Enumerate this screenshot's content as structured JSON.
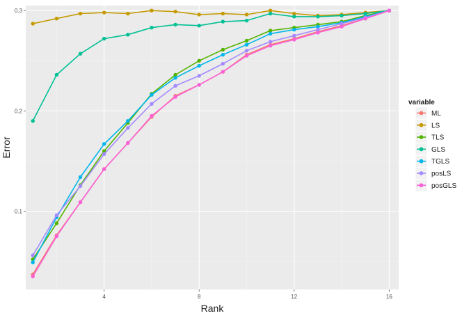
{
  "chart_data": {
    "type": "line",
    "xlabel": "Rank",
    "ylabel": "Error",
    "xlim": [
      0.7,
      16.4
    ],
    "ylim": [
      0.022,
      0.305
    ],
    "x_ticks": [
      4,
      8,
      12,
      16
    ],
    "x_tick_labels": [
      "4",
      "8",
      "12",
      "16"
    ],
    "y_ticks": [
      0.1,
      0.2,
      0.3
    ],
    "y_tick_labels": [
      "0.1",
      "0.2",
      "0.3"
    ],
    "x_minor_ticks": [
      2,
      6,
      10,
      14
    ],
    "y_minor_ticks": [
      0.05,
      0.15,
      0.25
    ],
    "grid": true,
    "background": "#ebebeb",
    "legend": {
      "title": "variable",
      "position": "right"
    },
    "x": [
      1,
      2,
      3,
      4,
      5,
      6,
      7,
      8,
      9,
      10,
      11,
      12,
      13,
      14,
      15,
      16
    ],
    "series": [
      {
        "name": "ML",
        "color": "#f8766d",
        "values": [
          0.037,
          0.076,
          0.109,
          0.142,
          0.168,
          0.194,
          0.215,
          0.226,
          0.239,
          0.256,
          0.266,
          0.272,
          0.279,
          0.285,
          0.292,
          0.3
        ]
      },
      {
        "name": "LS",
        "color": "#c49a00",
        "values": [
          0.287,
          0.292,
          0.297,
          0.298,
          0.297,
          0.3,
          0.299,
          0.296,
          0.297,
          0.296,
          0.3,
          0.297,
          0.295,
          0.296,
          0.298,
          0.3
        ]
      },
      {
        "name": "TLS",
        "color": "#53b400",
        "values": [
          0.052,
          0.088,
          0.126,
          0.16,
          0.188,
          0.217,
          0.236,
          0.25,
          0.261,
          0.27,
          0.28,
          0.283,
          0.286,
          0.289,
          0.295,
          0.3
        ]
      },
      {
        "name": "GLS",
        "color": "#00c094",
        "values": [
          0.19,
          0.236,
          0.257,
          0.272,
          0.276,
          0.283,
          0.286,
          0.285,
          0.289,
          0.29,
          0.297,
          0.294,
          0.294,
          0.295,
          0.297,
          0.3
        ]
      },
      {
        "name": "TGLS",
        "color": "#00b6eb",
        "values": [
          0.049,
          0.094,
          0.134,
          0.167,
          0.19,
          0.216,
          0.233,
          0.245,
          0.256,
          0.266,
          0.277,
          0.281,
          0.284,
          0.288,
          0.294,
          0.3
        ]
      },
      {
        "name": "posLS",
        "color": "#a58aff",
        "values": [
          0.056,
          0.096,
          0.125,
          0.157,
          0.183,
          0.207,
          0.225,
          0.235,
          0.247,
          0.26,
          0.269,
          0.275,
          0.281,
          0.287,
          0.293,
          0.3
        ]
      },
      {
        "name": "posGLS",
        "color": "#fb61d7",
        "values": [
          0.035,
          0.075,
          0.109,
          0.142,
          0.168,
          0.195,
          0.214,
          0.226,
          0.239,
          0.255,
          0.265,
          0.271,
          0.278,
          0.284,
          0.292,
          0.3
        ]
      }
    ]
  }
}
